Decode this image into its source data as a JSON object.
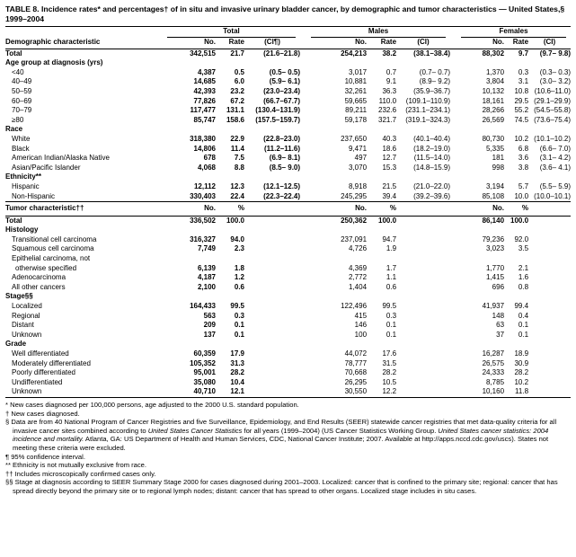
{
  "title": "TABLE 8. Incidence rates* and percentages† of in situ and invasive urinary bladder cancer, by demographic and tumor characteristics — United States,§ 1999–2004",
  "header": {
    "row_label": "Demographic characteristic",
    "groups": [
      "Total",
      "Males",
      "Females"
    ],
    "sub_cols": [
      "No.",
      "Rate",
      "(CI¶)",
      "No.",
      "Rate",
      "(CI)",
      "No.",
      "Rate",
      "(CI)"
    ]
  },
  "demographic_rows": [
    {
      "type": "total",
      "label": "Total",
      "cells": [
        "342,515",
        "21.7",
        "(21.6–21.8)",
        "254,213",
        "38.2",
        "(38.1–38.4)",
        "88,302",
        "9.7",
        "(9.7– 9.8)"
      ]
    },
    {
      "type": "section",
      "label": "Age group at diagnosis (yrs)"
    },
    {
      "type": "data",
      "label": "<40",
      "cells": [
        "4,387",
        "0.5",
        "(0.5– 0.5)",
        "3,017",
        "0.7",
        "(0.7– 0.7)",
        "1,370",
        "0.3",
        "(0.3– 0.3)"
      ]
    },
    {
      "type": "data",
      "label": "40–49",
      "cells": [
        "14,685",
        "6.0",
        "(5.9– 6.1)",
        "10,881",
        "9.1",
        "(8.9– 9.2)",
        "3,804",
        "3.1",
        "(3.0– 3.2)"
      ]
    },
    {
      "type": "data",
      "label": "50–59",
      "cells": [
        "42,393",
        "23.2",
        "(23.0–23.4)",
        "32,261",
        "36.3",
        "(35.9–36.7)",
        "10,132",
        "10.8",
        "(10.6–11.0)"
      ]
    },
    {
      "type": "data",
      "label": "60–69",
      "cells": [
        "77,826",
        "67.2",
        "(66.7–67.7)",
        "59,665",
        "110.0",
        "(109.1–110.9)",
        "18,161",
        "29.5",
        "(29.1–29.9)"
      ]
    },
    {
      "type": "data",
      "label": "70–79",
      "cells": [
        "117,477",
        "131.1",
        "(130.4–131.9)",
        "89,211",
        "232.6",
        "(231.1–234.1)",
        "28,266",
        "55.2",
        "(54.5–55.8)"
      ]
    },
    {
      "type": "data",
      "label": "≥80",
      "cells": [
        "85,747",
        "158.6",
        "(157.5–159.7)",
        "59,178",
        "321.7",
        "(319.1–324.3)",
        "26,569",
        "74.5",
        "(73.6–75.4)"
      ]
    },
    {
      "type": "section",
      "label": "Race"
    },
    {
      "type": "data",
      "label": "White",
      "cells": [
        "318,380",
        "22.9",
        "(22.8–23.0)",
        "237,650",
        "40.3",
        "(40.1–40.4)",
        "80,730",
        "10.2",
        "(10.1–10.2)"
      ]
    },
    {
      "type": "data",
      "label": "Black",
      "cells": [
        "14,806",
        "11.4",
        "(11.2–11.6)",
        "9,471",
        "18.6",
        "(18.2–19.0)",
        "5,335",
        "6.8",
        "(6.6– 7.0)"
      ]
    },
    {
      "type": "data",
      "label": "American Indian/Alaska Native",
      "cells": [
        "678",
        "7.5",
        "(6.9– 8.1)",
        "497",
        "12.7",
        "(11.5–14.0)",
        "181",
        "3.6",
        "(3.1– 4.2)"
      ]
    },
    {
      "type": "data",
      "label": "Asian/Pacific Islander",
      "cells": [
        "4,068",
        "8.8",
        "(8.5– 9.0)",
        "3,070",
        "15.3",
        "(14.8–15.9)",
        "998",
        "3.8",
        "(3.6– 4.1)"
      ]
    },
    {
      "type": "section",
      "label": "Ethnicity**"
    },
    {
      "type": "data",
      "label": "Hispanic",
      "cells": [
        "12,112",
        "12.3",
        "(12.1–12.5)",
        "8,918",
        "21.5",
        "(21.0–22.0)",
        "3,194",
        "5.7",
        "(5.5– 5.9)"
      ]
    },
    {
      "type": "data",
      "label": "Non-Hispanic",
      "cells": [
        "330,403",
        "22.4",
        "(22.3–22.4)",
        "245,295",
        "39.4",
        "(39.2–39.6)",
        "85,108",
        "10.0",
        "(10.0–10.1)"
      ]
    }
  ],
  "tumor_header": {
    "label": "Tumor characteristic††",
    "cols": [
      "No.",
      "%",
      "No.",
      "%",
      "No.",
      "%"
    ]
  },
  "tumor_rows": [
    {
      "type": "total",
      "label": "Total",
      "cells": [
        "336,502",
        "100.0",
        "250,362",
        "100.0",
        "86,140",
        "100.0"
      ]
    },
    {
      "type": "section",
      "label": "Histology"
    },
    {
      "type": "data",
      "label": "Transitional cell carcinoma",
      "cells": [
        "316,327",
        "94.0",
        "237,091",
        "94.7",
        "79,236",
        "92.0"
      ]
    },
    {
      "type": "data",
      "label": "Squamous cell carcinoma",
      "cells": [
        "7,749",
        "2.3",
        "4,726",
        "1.9",
        "3,023",
        "3.5"
      ]
    },
    {
      "type": "data",
      "label": "Epithelial carcinoma, not",
      "label2": "otherwise specified",
      "cells": [
        "6,139",
        "1.8",
        "4,369",
        "1.7",
        "1,770",
        "2.1"
      ]
    },
    {
      "type": "data",
      "label": "Adenocarcinoma",
      "cells": [
        "4,187",
        "1.2",
        "2,772",
        "1.1",
        "1,415",
        "1.6"
      ]
    },
    {
      "type": "data",
      "label": "All other cancers",
      "cells": [
        "2,100",
        "0.6",
        "1,404",
        "0.6",
        "696",
        "0.8"
      ]
    },
    {
      "type": "section",
      "label": "Stage§§"
    },
    {
      "type": "data",
      "label": "Localized",
      "cells": [
        "164,433",
        "99.5",
        "122,496",
        "99.5",
        "41,937",
        "99.4"
      ]
    },
    {
      "type": "data",
      "label": "Regional",
      "cells": [
        "563",
        "0.3",
        "415",
        "0.3",
        "148",
        "0.4"
      ]
    },
    {
      "type": "data",
      "label": "Distant",
      "cells": [
        "209",
        "0.1",
        "146",
        "0.1",
        "63",
        "0.1"
      ]
    },
    {
      "type": "data",
      "label": "Unknown",
      "cells": [
        "137",
        "0.1",
        "100",
        "0.1",
        "37",
        "0.1"
      ]
    },
    {
      "type": "section",
      "label": "Grade"
    },
    {
      "type": "data",
      "label": "Well differentiated",
      "cells": [
        "60,359",
        "17.9",
        "44,072",
        "17.6",
        "16,287",
        "18.9"
      ]
    },
    {
      "type": "data",
      "label": "Moderately differentiated",
      "cells": [
        "105,352",
        "31.3",
        "78,777",
        "31.5",
        "26,575",
        "30.9"
      ]
    },
    {
      "type": "data",
      "label": "Poorly differentiated",
      "cells": [
        "95,001",
        "28.2",
        "70,668",
        "28.2",
        "24,333",
        "28.2"
      ]
    },
    {
      "type": "data",
      "label": "Undifferentiated",
      "cells": [
        "35,080",
        "10.4",
        "26,295",
        "10.5",
        "8,785",
        "10.2"
      ]
    },
    {
      "type": "data",
      "label": "Unknown",
      "cells": [
        "40,710",
        "12.1",
        "30,550",
        "12.2",
        "10,160",
        "11.8"
      ]
    }
  ],
  "footnotes": [
    {
      "symbol": "*",
      "text": "New cases diagnosed per 100,000 persons, age adjusted to the 2000 U.S. standard population."
    },
    {
      "symbol": "†",
      "text": "New cases diagnosed."
    },
    {
      "symbol": "§",
      "text": "Data are from 40 National Program of Cancer Registries and five Surveillance, Epidemiology, and End Results (SEER) statewide cancer registries that met data-quality criteria for all invasive cancer sites combined according to United States Cancer Statistics for all years (1999–2004) (US Cancer Statistics Working Group. United States cancer statistics: 2004 incidence and mortality. Atlanta, GA: US Department of Health and Human Services, CDC, National Cancer Institute; 2007. Available at http://apps.nccd.cdc.gov/uscs). States not meeting these criteria were excluded."
    },
    {
      "symbol": "¶",
      "text": "95% confidence interval."
    },
    {
      "symbol": "**",
      "text": "Ethnicity is not mutually exclusive from race."
    },
    {
      "symbol": "††",
      "text": "Includes microscopically confirmed cases only."
    },
    {
      "symbol": "§§",
      "text": "Stage at diagnosis according to SEER Summary Stage 2000 for cases diagnosed during 2001–2003. Localized: cancer that is confined to the primary site; regional: cancer that has spread directly beyond the primary site or to regional lymph nodes; distant: cancer that has spread to other organs. Localized stage includes in situ cases."
    }
  ],
  "footnote_italic_phrases": [
    "United States Cancer Statistics",
    "United States cancer statistics: 2004 incidence and mortality."
  ]
}
